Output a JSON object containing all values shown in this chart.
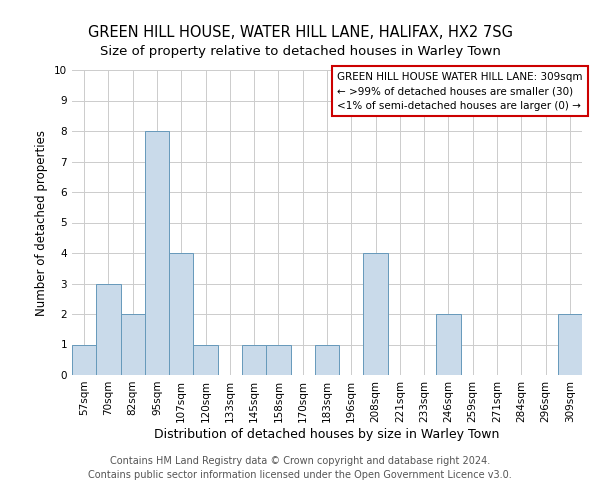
{
  "title": "GREEN HILL HOUSE, WATER HILL LANE, HALIFAX, HX2 7SG",
  "subtitle": "Size of property relative to detached houses in Warley Town",
  "xlabel": "Distribution of detached houses by size in Warley Town",
  "ylabel": "Number of detached properties",
  "bar_labels": [
    "57sqm",
    "70sqm",
    "82sqm",
    "95sqm",
    "107sqm",
    "120sqm",
    "133sqm",
    "145sqm",
    "158sqm",
    "170sqm",
    "183sqm",
    "196sqm",
    "208sqm",
    "221sqm",
    "233sqm",
    "246sqm",
    "259sqm",
    "271sqm",
    "284sqm",
    "296sqm",
    "309sqm"
  ],
  "bar_values": [
    1,
    3,
    2,
    8,
    4,
    1,
    0,
    1,
    1,
    0,
    1,
    0,
    4,
    0,
    0,
    2,
    0,
    0,
    0,
    0,
    2
  ],
  "bar_color": "#c9daea",
  "bar_edge_color": "#6699bb",
  "ylim": [
    0,
    10
  ],
  "yticks": [
    0,
    1,
    2,
    3,
    4,
    5,
    6,
    7,
    8,
    9,
    10
  ],
  "grid_color": "#cccccc",
  "background_color": "#ffffff",
  "legend_box_color": "#cc0000",
  "legend_text_line1": "GREEN HILL HOUSE WATER HILL LANE: 309sqm",
  "legend_text_line2": "← >99% of detached houses are smaller (30)",
  "legend_text_line3": "<1% of semi-detached houses are larger (0) →",
  "footer_line1": "Contains HM Land Registry data © Crown copyright and database right 2024.",
  "footer_line2": "Contains public sector information licensed under the Open Government Licence v3.0.",
  "title_fontsize": 10.5,
  "subtitle_fontsize": 9.5,
  "xlabel_fontsize": 9,
  "ylabel_fontsize": 8.5,
  "tick_fontsize": 7.5,
  "legend_fontsize": 7.5,
  "footer_fontsize": 7
}
